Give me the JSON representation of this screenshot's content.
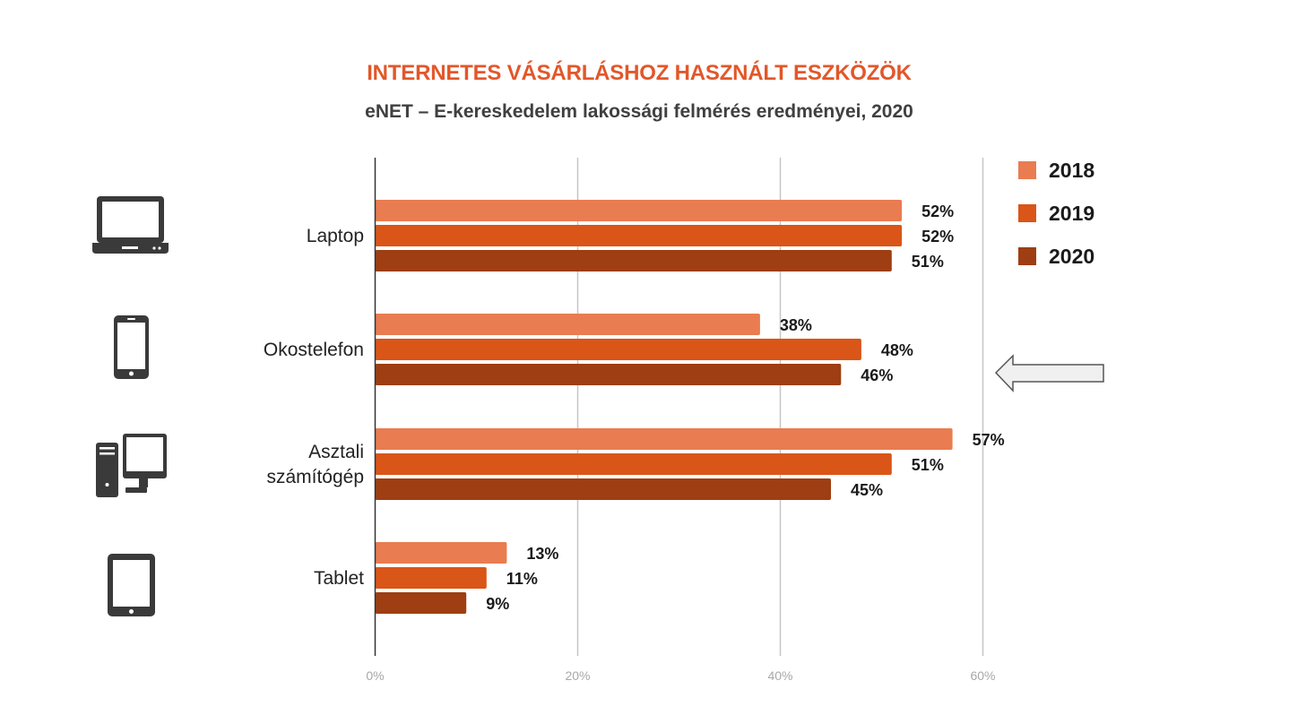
{
  "chart_data": {
    "type": "bar",
    "orientation": "horizontal",
    "title": "INTERNETES VÁSÁRLÁSHOZ HASZNÁLT ESZKÖZÖK",
    "subtitle": "eNET – E-kereskedelem lakossági felmérés eredményei, 2020",
    "categories": [
      {
        "lines": [
          "Laptop"
        ],
        "icon": "laptop-icon"
      },
      {
        "lines": [
          "Okostelefon"
        ],
        "icon": "smartphone-icon"
      },
      {
        "lines": [
          "Asztali",
          "számítógép"
        ],
        "icon": "desktop-computer-icon"
      },
      {
        "lines": [
          "Tablet"
        ],
        "icon": "tablet-icon"
      }
    ],
    "series": [
      {
        "name": "2018",
        "color": "#e97c50",
        "values": [
          52,
          38,
          57,
          13
        ]
      },
      {
        "name": "2019",
        "color": "#da5518",
        "values": [
          52,
          48,
          51,
          11
        ]
      },
      {
        "name": "2020",
        "color": "#9e3e12",
        "values": [
          51,
          46,
          45,
          9
        ]
      }
    ],
    "value_suffix": "%",
    "xlim": [
      0,
      60
    ],
    "xticks": [
      "0%",
      "20%",
      "40%",
      "60%"
    ],
    "grid": true,
    "legend_position": "top-right",
    "annotation": "left-pointing arrow next to Okostelefon"
  }
}
